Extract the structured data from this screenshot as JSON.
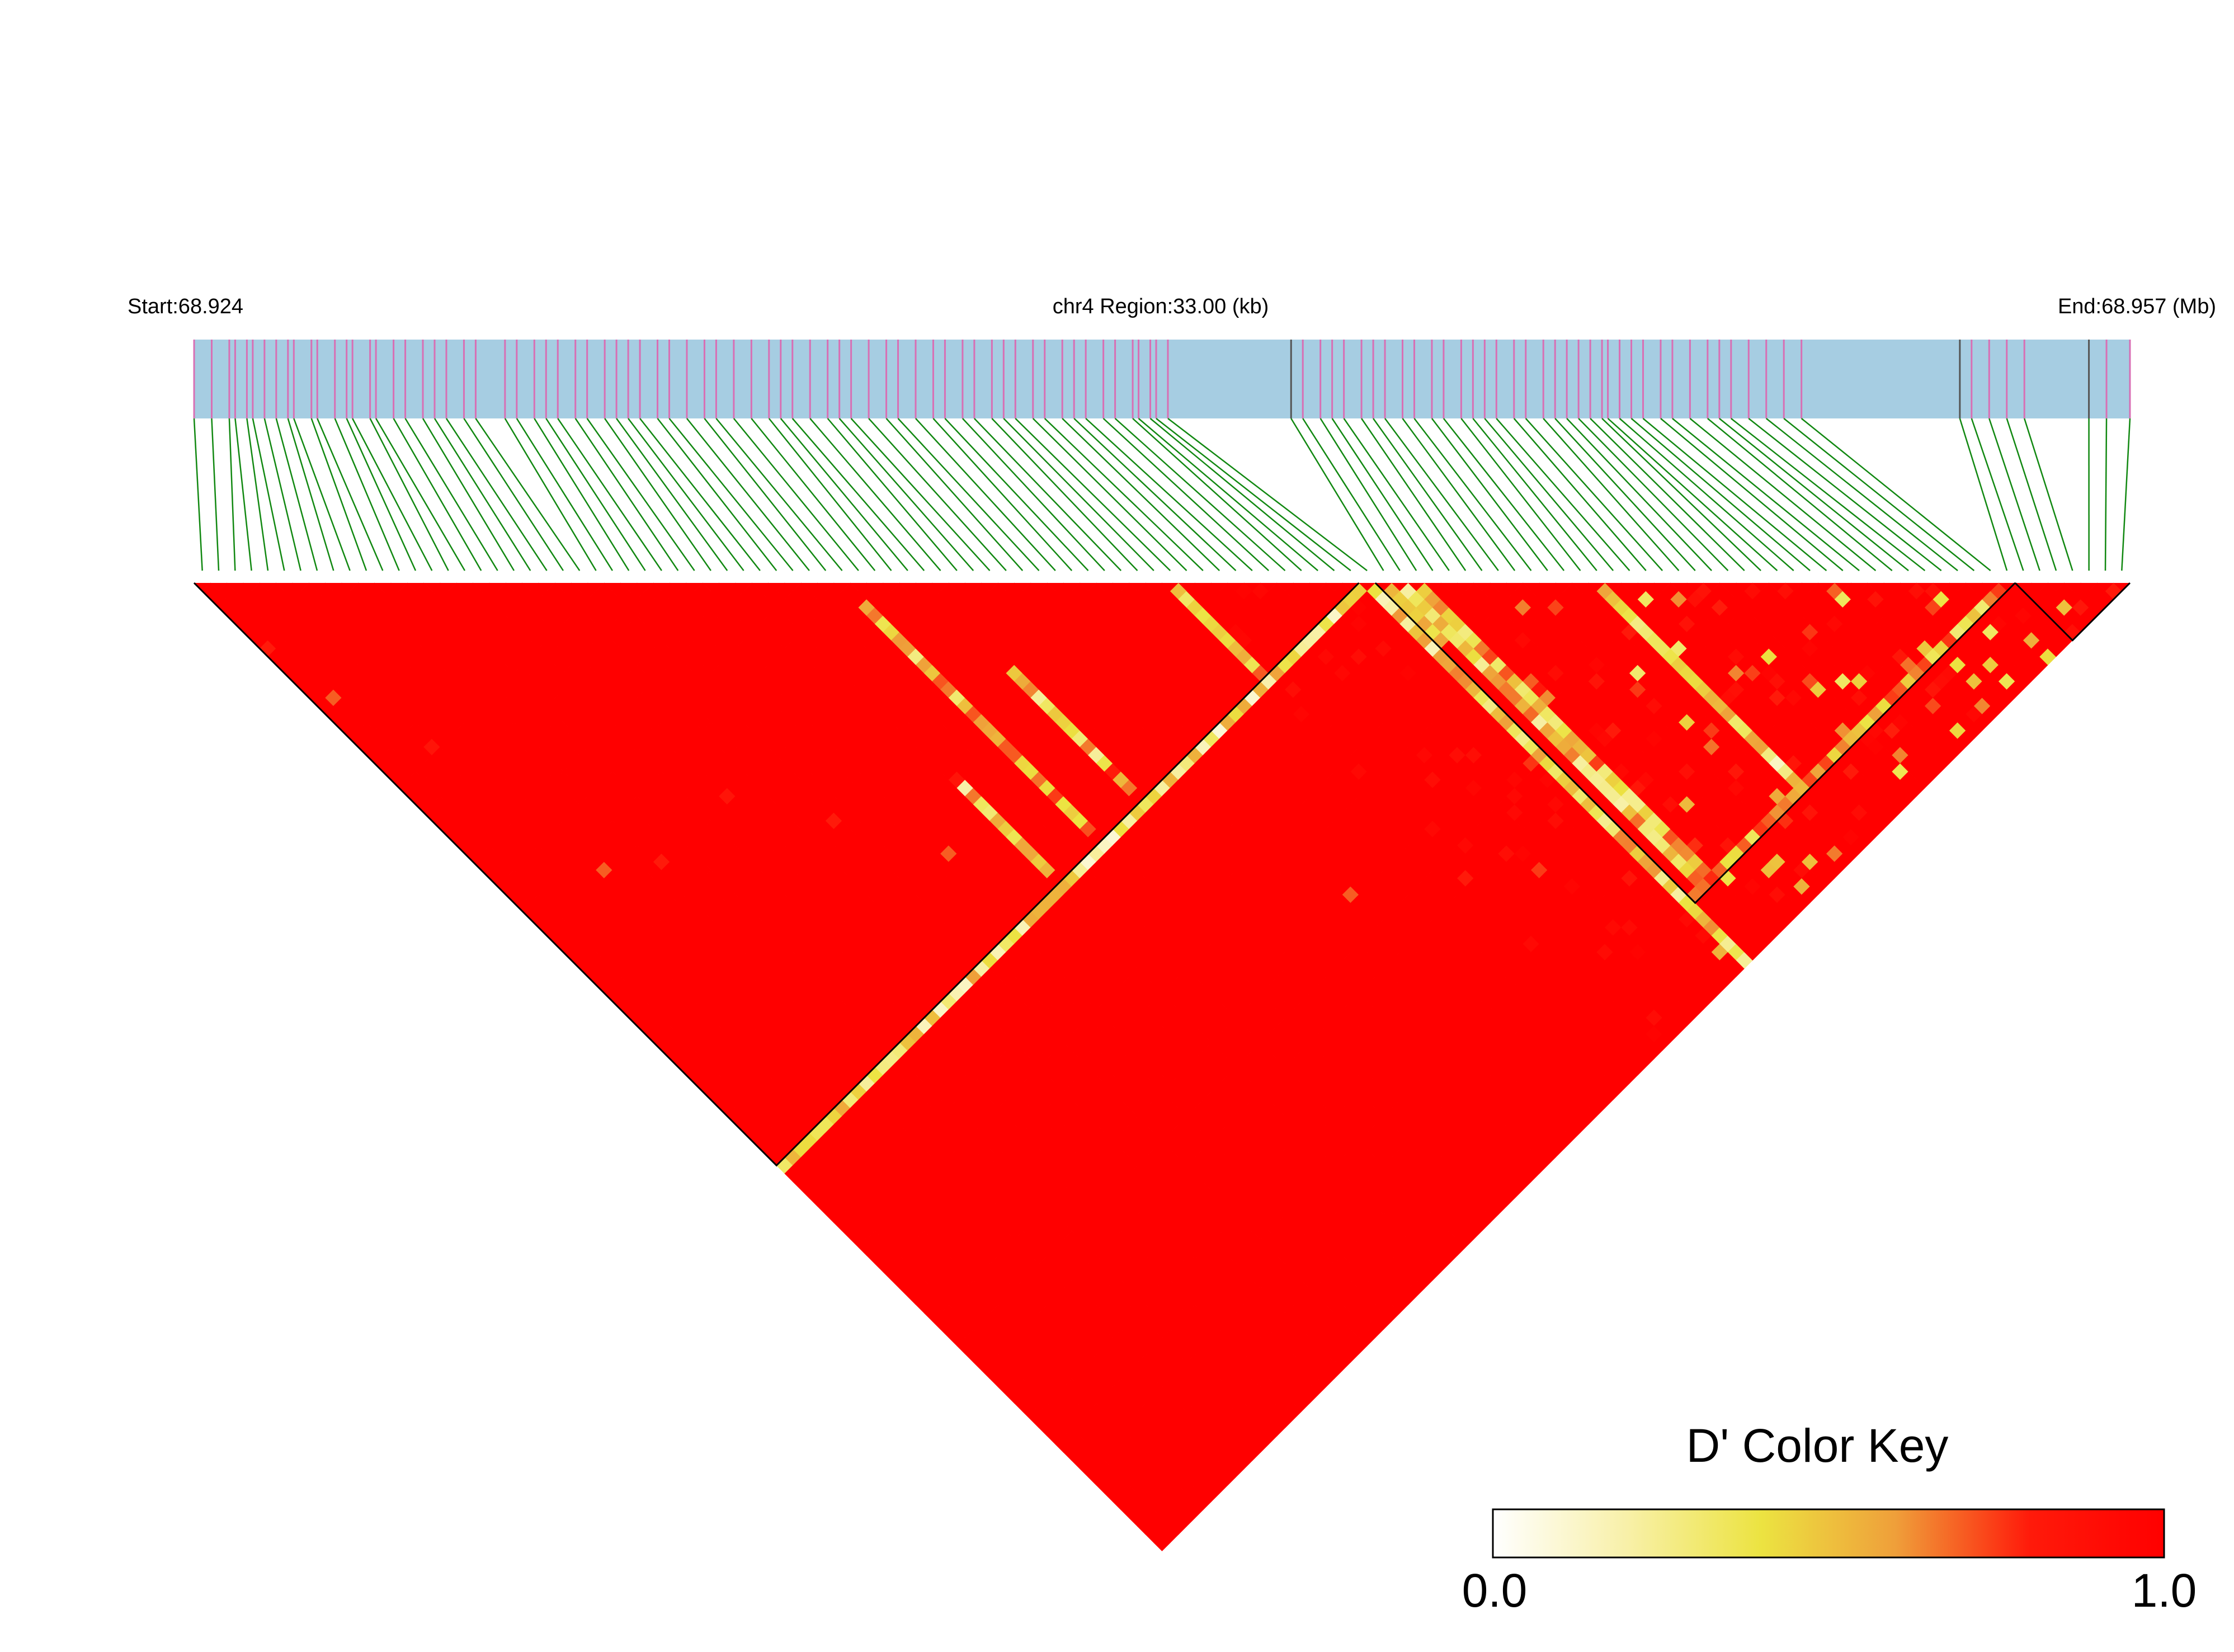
{
  "chart_data": {
    "type": "heatmap",
    "title": "",
    "header": {
      "start_label": "Start:68.924",
      "region_label": "chr4 Region:33.00 (kb)",
      "end_label": "End:68.957 (Mb)"
    },
    "chromosome": "chr4",
    "region_start_mb": 68.924,
    "region_end_mb": 68.957,
    "region_length_kb": 33.0,
    "n_markers": 118,
    "marker_positions_mb": [
      68.924,
      68.9243,
      68.9246,
      68.9247,
      68.9249,
      68.925,
      68.9252,
      68.9254,
      68.9256,
      68.9257,
      68.926,
      68.9261,
      68.9264,
      68.9266,
      68.9267,
      68.927,
      68.9271,
      68.9274,
      68.9276,
      68.9279,
      68.9281,
      68.9283,
      68.9286,
      68.9288,
      68.9293,
      68.9295,
      68.9298,
      68.93,
      68.9302,
      68.9305,
      68.9307,
      68.931,
      68.9312,
      68.9314,
      68.9316,
      68.9319,
      68.9321,
      68.9324,
      68.9327,
      68.9329,
      68.9332,
      68.9335,
      68.9338,
      68.934,
      68.9342,
      68.9345,
      68.9348,
      68.935,
      68.9352,
      68.9355,
      68.9358,
      68.936,
      68.9363,
      68.9366,
      68.9368,
      68.9371,
      68.9373,
      68.9376,
      68.9378,
      68.938,
      68.9383,
      68.9385,
      68.9388,
      68.939,
      68.9392,
      68.9395,
      68.9397,
      68.94,
      68.9401,
      68.9403,
      68.9404,
      68.9406,
      68.9427,
      68.9429,
      68.9432,
      68.9434,
      68.9436,
      68.9439,
      68.9441,
      68.9443,
      68.9446,
      68.9448,
      68.9451,
      68.9453,
      68.9456,
      68.9458,
      68.946,
      68.9462,
      68.9465,
      68.9467,
      68.947,
      68.9472,
      68.9474,
      68.9476,
      68.9478,
      68.948,
      68.9481,
      68.9483,
      68.9485,
      68.9487,
      68.949,
      68.9492,
      68.9495,
      68.9498,
      68.95,
      68.9502,
      68.9505,
      68.9508,
      68.9511,
      68.9514,
      68.9541,
      68.9543,
      68.9546,
      68.9549,
      68.9552,
      68.9563,
      68.9566,
      68.957
    ],
    "ld_blocks": [
      {
        "first_marker": 1,
        "last_marker": 71
      },
      {
        "first_marker": 73,
        "last_marker": 111
      },
      {
        "first_marker": 112,
        "last_marker": 118
      }
    ],
    "weak_ld_pairs": [
      {
        "i": 1,
        "j": 9,
        "d": 0.8
      },
      {
        "i": 2,
        "j": 16,
        "d": 0.7
      },
      {
        "i": 5,
        "j": 25,
        "d": 0.85
      },
      {
        "i": 8,
        "j": 43,
        "d": 0.7
      },
      {
        "i": 12,
        "j": 46,
        "d": 0.8
      },
      {
        "i": 20,
        "j": 46,
        "d": 0.85
      },
      {
        "i": 25,
        "j": 54,
        "d": 0.8
      },
      {
        "i": 30,
        "j": 63,
        "d": 0.7
      },
      {
        "i": 35,
        "j": 59,
        "d": 0.85
      },
      {
        "i": 40,
        "j": 66,
        "d": 0.75
      },
      {
        "i": 45,
        "j": 68,
        "d": 0.8
      },
      {
        "i": 52,
        "j": 90,
        "d": 0.7
      },
      {
        "i": 60,
        "j": 96,
        "d": 0.8
      },
      {
        "i": 65,
        "j": 100,
        "d": 0.75
      },
      {
        "i": 70,
        "j": 106,
        "d": 0.85
      },
      {
        "i": 76,
        "j": 88,
        "d": 0.7
      },
      {
        "i": 78,
        "j": 96,
        "d": 0.8
      },
      {
        "i": 80,
        "j": 92,
        "d": 0.85
      },
      {
        "i": 84,
        "j": 102,
        "d": 0.75
      },
      {
        "i": 90,
        "j": 104,
        "d": 0.8
      }
    ],
    "streak_pairs": [
      {
        "marker": 35,
        "partner_from": 60,
        "partner_to": 70,
        "d": 0.45
      },
      {
        "marker": 40,
        "partner_from": 43,
        "partner_to": 70,
        "d": 0.5
      },
      {
        "marker": 45,
        "partner_from": 56,
        "partner_to": 70,
        "d": 0.45
      },
      {
        "marker": 60,
        "partner_from": 61,
        "partner_to": 71,
        "d": 0.5
      },
      {
        "marker": 72,
        "partner_from": 1,
        "partner_to": 71,
        "d": 0.35
      },
      {
        "marker": 72,
        "partner_from": 73,
        "partner_to": 118,
        "d": 0.4
      },
      {
        "marker": 73,
        "partner_from": 74,
        "partner_to": 80,
        "d": 0.45
      },
      {
        "marker": 74,
        "partner_from": 75,
        "partner_to": 110,
        "d": 0.45
      },
      {
        "marker": 75,
        "partner_from": 76,
        "partner_to": 110,
        "d": 0.5
      },
      {
        "marker": 86,
        "partner_from": 87,
        "partner_to": 110,
        "d": 0.35
      },
      {
        "marker": 111,
        "partner_from": 73,
        "partner_to": 110,
        "d": 0.55
      }
    ],
    "color_key": {
      "title": "D' Color Key",
      "min_label": "0.0",
      "max_label": "1.0",
      "min": 0.0,
      "max": 1.0,
      "stops": [
        "#ffffff",
        "#f8f0a8",
        "#ece341",
        "#ef9f3a",
        "#ff1a0a",
        "#ff0000"
      ]
    },
    "colors": {
      "track_fill": "#a6cde2",
      "snp_tick": "#d86fb4",
      "gap_tick": "#555555",
      "connector": "#118811",
      "block_outline": "#000000",
      "strong_ld": "#ff0000"
    }
  }
}
